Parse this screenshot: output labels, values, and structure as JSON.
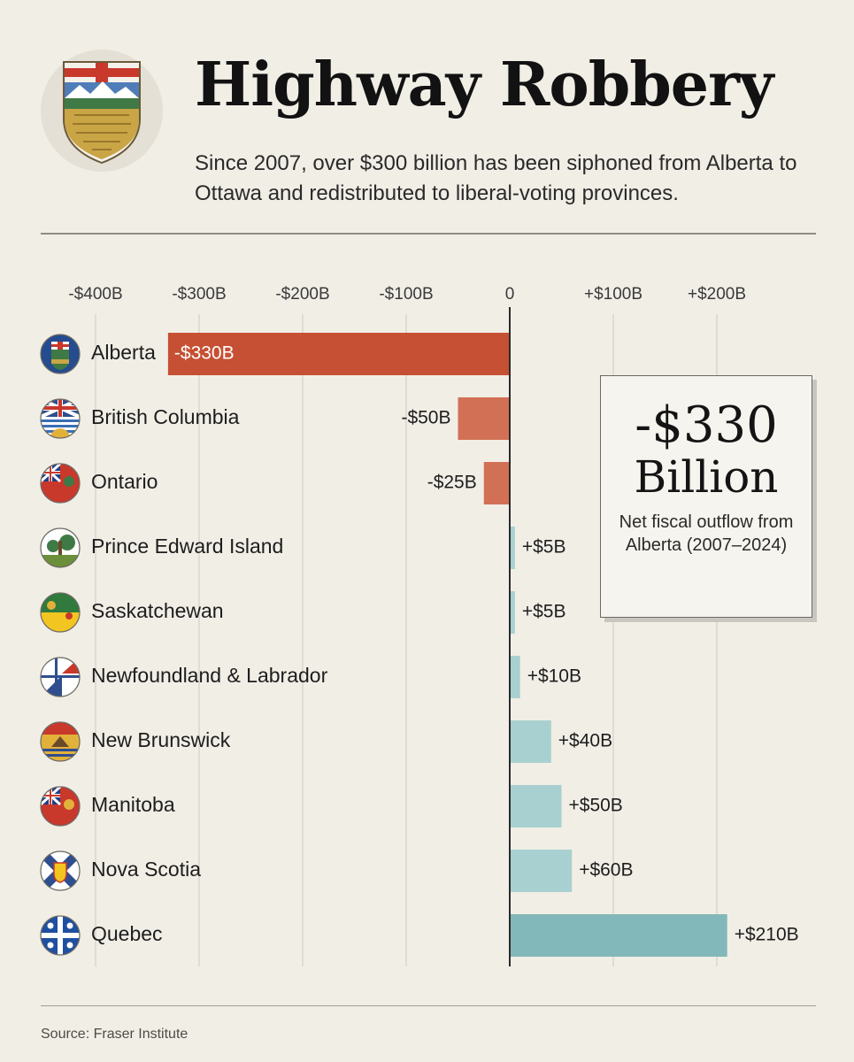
{
  "header": {
    "title": "Highway Robbery",
    "subtitle": "Since 2007, over $300 billion has been siphoned from Alberta to Ottawa and redistributed to liberal-voting provinces."
  },
  "callout": {
    "value": "-$330",
    "unit": "Billion",
    "description": "Net fiscal outflow from Alberta (2007–2024)"
  },
  "footer": {
    "source": "Source: Fraser Institute"
  },
  "colors": {
    "negative_strong": "#c65033",
    "negative": "#d27055",
    "positive": "#a9d0d0",
    "positive_strong": "#82b8b9",
    "axis": "#2a2a2a",
    "grid": "#d3d0c9"
  },
  "chart_data": {
    "type": "bar",
    "orientation": "horizontal",
    "categories": [
      "Alberta",
      "British Columbia",
      "Ontario",
      "Prince Edward Island",
      "Saskatchewan",
      "Newfoundland & Labrador",
      "New Brunswick",
      "Manitoba",
      "Nova Scotia",
      "Quebec"
    ],
    "values": [
      -330,
      -50,
      -25,
      5,
      5,
      10,
      40,
      50,
      60,
      210
    ],
    "data_labels": [
      "-$330B",
      "-$50B",
      "-$25B",
      "+$5B",
      "+$5B",
      "+$10B",
      "+$40B",
      "+$50B",
      "+$60B",
      "+$210B"
    ],
    "icons": [
      "alberta-flag-icon",
      "british-columbia-flag-icon",
      "ontario-flag-icon",
      "pei-flag-icon",
      "saskatchewan-flag-icon",
      "newfoundland-flag-icon",
      "new-brunswick-flag-icon",
      "manitoba-flag-icon",
      "nova-scotia-flag-icon",
      "quebec-flag-icon"
    ],
    "xticks": [
      -400,
      -300,
      -200,
      -100,
      0,
      100,
      200
    ],
    "xtick_labels": [
      "-$400B",
      "-$300B",
      "-$200B",
      "-$100B",
      "0",
      "+$100B",
      "+$200B"
    ],
    "xlim": [
      -400,
      250
    ],
    "grid": true
  }
}
